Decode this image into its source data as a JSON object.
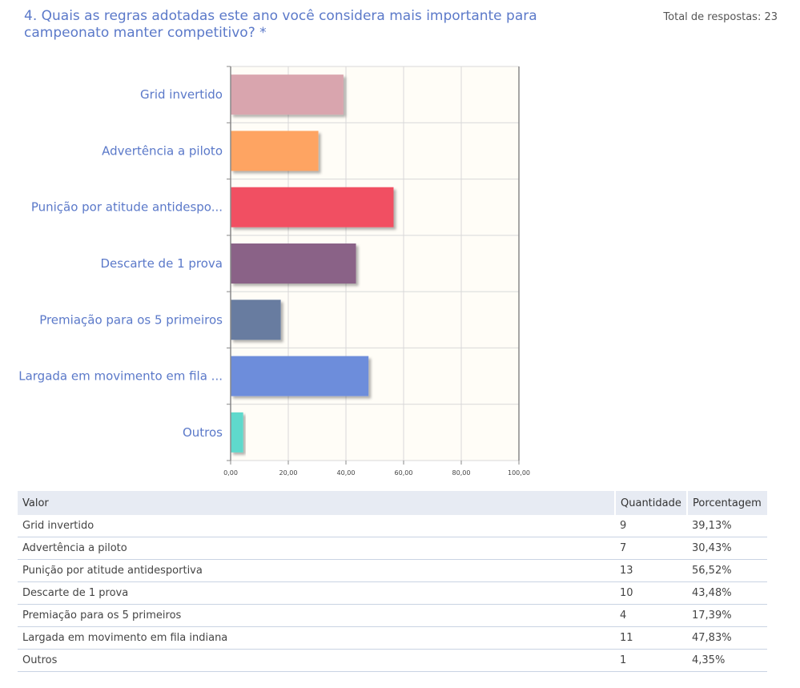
{
  "question": "4. Quais as regras adotadas este ano você considera mais importante para campeonato manter competitivo? *",
  "total_responses": "Total de respostas: 23",
  "chart_data": {
    "type": "bar",
    "orientation": "horizontal",
    "categories": [
      "Grid invertido",
      "Advertência a piloto",
      "Punição por atitude antidespo...",
      "Descarte de 1 prova",
      "Premiação para os 5 primeiros",
      "Largada em movimento em fila ...",
      "Outros"
    ],
    "values": [
      39.13,
      30.43,
      56.52,
      43.48,
      17.39,
      47.83,
      4.35
    ],
    "colors": [
      "#d9a5ae",
      "#fea462",
      "#f14f62",
      "#8a6287",
      "#677ca0",
      "#6d8ddb",
      "#5fd9cc"
    ],
    "xlim": [
      0,
      100
    ],
    "xticks": [
      "0,00",
      "20,00",
      "40,00",
      "60,00",
      "80,00",
      "100,00"
    ],
    "grid": true
  },
  "table": {
    "headers": [
      "Valor",
      "Quantidade",
      "Porcentagem"
    ],
    "rows": [
      {
        "valor": "Grid invertido",
        "quantidade": "9",
        "porcentagem": "39,13%"
      },
      {
        "valor": "Advertência a piloto",
        "quantidade": "7",
        "porcentagem": "30,43%"
      },
      {
        "valor": "Punição por atitude antidesportiva",
        "quantidade": "13",
        "porcentagem": "56,52%"
      },
      {
        "valor": "Descarte de 1 prova",
        "quantidade": "10",
        "porcentagem": "43,48%"
      },
      {
        "valor": "Premiação para os 5 primeiros",
        "quantidade": "4",
        "porcentagem": "17,39%"
      },
      {
        "valor": "Largada em movimento em fila indiana",
        "quantidade": "11",
        "porcentagem": "47,83%"
      },
      {
        "valor": "Outros",
        "quantidade": "1",
        "porcentagem": "4,35%"
      }
    ]
  }
}
